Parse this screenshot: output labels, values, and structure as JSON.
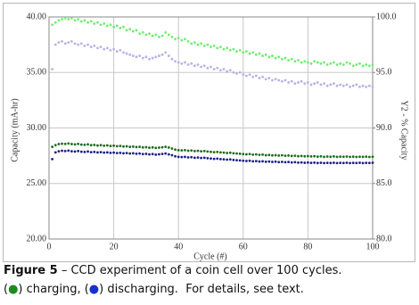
{
  "chart_data": {
    "type": "scatter",
    "x_label": "Cycle (#)",
    "y_label": "Capacity (mA-hr)",
    "y2_label": "Y2 - % Capacity",
    "xlim": [
      0,
      100
    ],
    "xticks": [
      0,
      20,
      40,
      60,
      80,
      100
    ],
    "ylim": [
      20,
      40
    ],
    "yticks": [
      {
        "value": 20,
        "label": "20.00"
      },
      {
        "value": 25,
        "label": "25.00"
      },
      {
        "value": 30,
        "label": "30.00"
      },
      {
        "value": 35,
        "label": "35.00"
      },
      {
        "value": 40,
        "label": "40.00"
      }
    ],
    "y2lim": [
      80,
      100
    ],
    "y2ticks": [
      {
        "value": 80,
        "label": "80.0"
      },
      {
        "value": 85,
        "label": "85.0"
      },
      {
        "value": 90,
        "label": "90.0"
      },
      {
        "value": 95,
        "label": "95.0"
      },
      {
        "value": 100,
        "label": "100.0"
      }
    ],
    "grid": true,
    "x": [
      1,
      2,
      3,
      4,
      5,
      6,
      7,
      8,
      9,
      10,
      11,
      12,
      13,
      14,
      15,
      16,
      17,
      18,
      19,
      20,
      21,
      22,
      23,
      24,
      25,
      26,
      27,
      28,
      29,
      30,
      31,
      32,
      33,
      34,
      35,
      36,
      37,
      38,
      39,
      40,
      41,
      42,
      43,
      44,
      45,
      46,
      47,
      48,
      49,
      50,
      51,
      52,
      53,
      54,
      55,
      56,
      57,
      58,
      59,
      60,
      61,
      62,
      63,
      64,
      65,
      66,
      67,
      68,
      69,
      70,
      71,
      72,
      73,
      74,
      75,
      76,
      77,
      78,
      79,
      80,
      81,
      82,
      83,
      84,
      85,
      86,
      87,
      88,
      89,
      90,
      91,
      92,
      93,
      94,
      95,
      96,
      97,
      98,
      99,
      100
    ],
    "series": [
      {
        "color": "#1d6b1d",
        "values": [
          28.3,
          28.45,
          28.55,
          28.58,
          28.56,
          28.6,
          28.55,
          28.52,
          28.56,
          28.5,
          28.48,
          28.52,
          28.45,
          28.47,
          28.42,
          28.45,
          28.4,
          28.43,
          28.38,
          28.4,
          28.36,
          28.38,
          28.33,
          28.35,
          28.3,
          28.32,
          28.28,
          28.3,
          28.25,
          28.27,
          28.22,
          28.25,
          28.2,
          28.23,
          28.26,
          28.3,
          28.24,
          28.15,
          28.05,
          28.0,
          27.98,
          28.0,
          27.95,
          27.97,
          27.92,
          27.94,
          27.9,
          27.92,
          27.88,
          27.85,
          27.82,
          27.84,
          27.8,
          27.78,
          27.75,
          27.77,
          27.72,
          27.7,
          27.68,
          27.65,
          27.63,
          27.65,
          27.6,
          27.62,
          27.58,
          27.6,
          27.55,
          27.57,
          27.53,
          27.55,
          27.52,
          27.54,
          27.5,
          27.52,
          27.48,
          27.5,
          27.46,
          27.48,
          27.45,
          27.47,
          27.44,
          27.46,
          27.42,
          27.45,
          27.4,
          27.43,
          27.41,
          27.44,
          27.4,
          27.42,
          27.41,
          27.43,
          27.4,
          27.42,
          27.39,
          27.41,
          27.4,
          27.42,
          27.39,
          27.41
        ]
      },
      {
        "color": "#1a1f8c",
        "values": [
          27.2,
          27.8,
          27.9,
          27.95,
          27.92,
          27.96,
          27.9,
          27.88,
          27.92,
          27.86,
          27.84,
          27.88,
          27.82,
          27.84,
          27.8,
          27.82,
          27.78,
          27.8,
          27.76,
          27.78,
          27.74,
          27.76,
          27.72,
          27.74,
          27.7,
          27.72,
          27.68,
          27.7,
          27.65,
          27.67,
          27.62,
          27.65,
          27.6,
          27.63,
          27.66,
          27.7,
          27.62,
          27.55,
          27.45,
          27.4,
          27.38,
          27.4,
          27.35,
          27.37,
          27.32,
          27.34,
          27.3,
          27.32,
          27.28,
          27.25,
          27.22,
          27.24,
          27.2,
          27.18,
          27.15,
          27.17,
          27.12,
          27.1,
          27.08,
          27.05,
          27.03,
          27.05,
          27.0,
          27.02,
          26.98,
          27.0,
          26.96,
          26.98,
          26.95,
          26.97,
          26.93,
          26.95,
          26.92,
          26.94,
          26.9,
          26.92,
          26.88,
          26.9,
          26.87,
          26.89,
          26.86,
          26.88,
          26.85,
          26.87,
          26.84,
          26.86,
          26.85,
          26.87,
          26.84,
          26.86,
          26.85,
          26.87,
          26.84,
          26.86,
          26.85,
          26.87,
          26.84,
          26.86,
          26.85,
          26.87
        ]
      },
      {
        "color": "#70ee70",
        "axis": "y2",
        "values": [
          99.3,
          99.5,
          99.7,
          99.8,
          99.9,
          99.8,
          99.9,
          99.7,
          99.8,
          99.6,
          99.7,
          99.5,
          99.6,
          99.4,
          99.5,
          99.3,
          99.4,
          99.2,
          99.3,
          99.1,
          99.2,
          99.0,
          99.1,
          98.8,
          98.9,
          98.7,
          98.8,
          98.5,
          98.6,
          98.4,
          98.5,
          98.3,
          98.4,
          98.2,
          98.3,
          98.6,
          98.4,
          98.2,
          98.0,
          98.1,
          97.9,
          98.0,
          97.8,
          97.6,
          97.7,
          97.5,
          97.6,
          97.4,
          97.5,
          97.3,
          97.4,
          97.2,
          97.3,
          97.1,
          97.2,
          97.0,
          97.1,
          96.9,
          97.0,
          96.8,
          96.9,
          96.7,
          96.8,
          96.6,
          96.7,
          96.5,
          96.6,
          96.4,
          96.5,
          96.3,
          96.4,
          96.2,
          96.3,
          96.1,
          96.2,
          96.0,
          96.1,
          95.9,
          96.0,
          95.9,
          95.8,
          96.0,
          95.9,
          95.8,
          95.9,
          95.7,
          95.8,
          95.9,
          95.7,
          95.8,
          95.7,
          95.9,
          95.8,
          95.6,
          95.7,
          95.8,
          95.6,
          95.7,
          95.6,
          95.7
        ]
      },
      {
        "color": "#b9b2e6",
        "axis": "y2",
        "values": [
          95.3,
          97.5,
          97.7,
          97.8,
          97.6,
          97.7,
          97.8,
          97.6,
          97.5,
          97.6,
          97.4,
          97.5,
          97.3,
          97.4,
          97.2,
          97.3,
          97.1,
          97.2,
          97.0,
          97.1,
          96.9,
          97.0,
          96.8,
          96.7,
          96.6,
          96.5,
          96.4,
          96.5,
          96.3,
          96.4,
          96.2,
          96.3,
          96.4,
          96.5,
          96.6,
          96.8,
          96.5,
          96.2,
          96.0,
          95.9,
          95.8,
          95.9,
          95.7,
          95.8,
          95.6,
          95.7,
          95.5,
          95.6,
          95.4,
          95.5,
          95.3,
          95.4,
          95.2,
          95.3,
          95.1,
          95.2,
          95.0,
          94.9,
          95.0,
          94.8,
          94.7,
          94.8,
          94.6,
          94.7,
          94.5,
          94.6,
          94.4,
          94.5,
          94.3,
          94.4,
          94.3,
          94.2,
          94.3,
          94.1,
          94.2,
          94.0,
          94.1,
          94.2,
          94.0,
          94.1,
          93.9,
          94.0,
          94.1,
          93.9,
          94.0,
          93.8,
          93.9,
          94.0,
          93.8,
          93.9,
          93.8,
          93.9,
          93.7,
          93.8,
          93.9,
          93.7,
          93.8,
          93.7,
          93.8,
          93.7
        ]
      }
    ]
  },
  "caption": {
    "label": "Figure 5",
    "text": " – CCD experiment of a coin cell over 100 cycles.",
    "line2": [
      "(",
      "●",
      ") charging, (",
      "●",
      ") discharging.  For details, see text."
    ]
  }
}
